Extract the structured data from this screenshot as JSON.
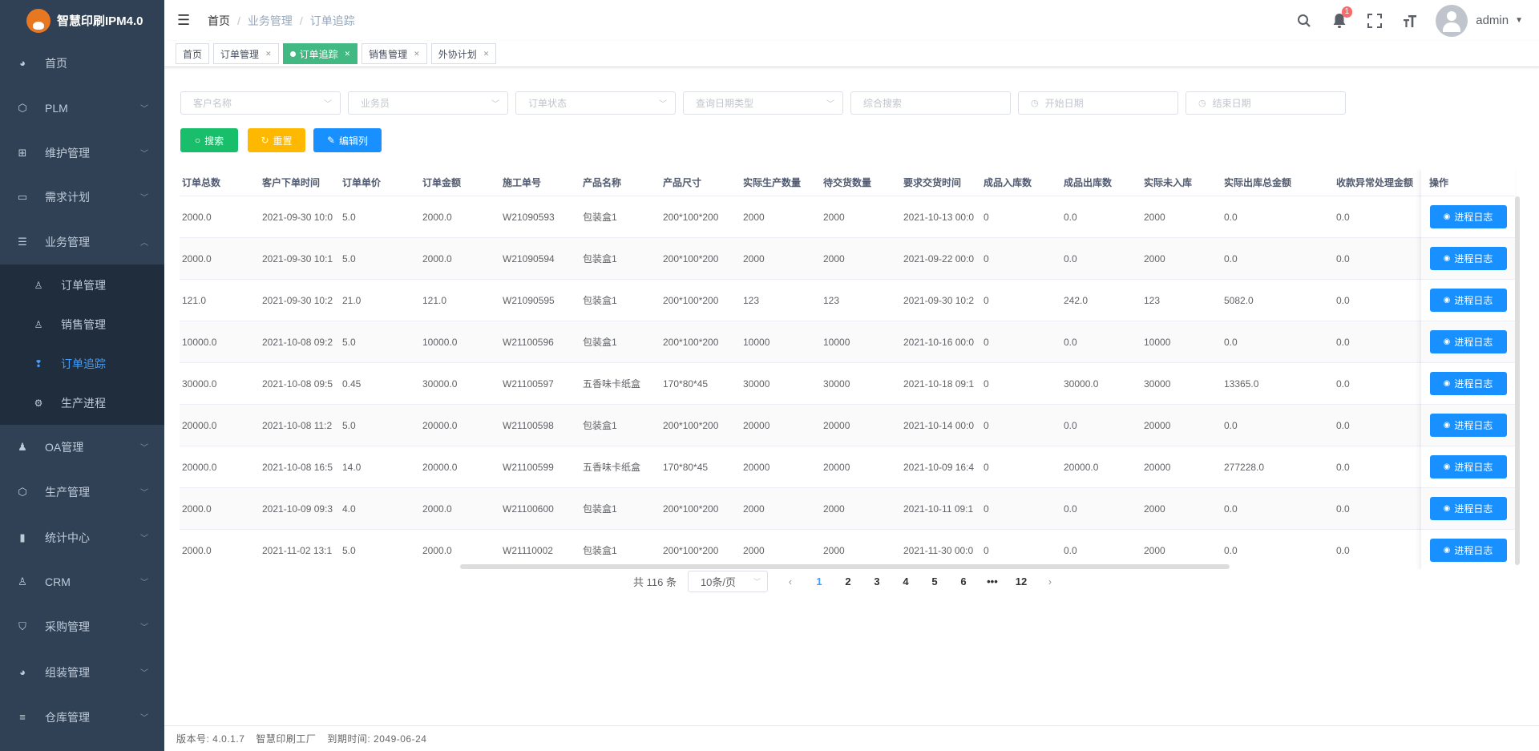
{
  "app": {
    "title": "智慧印刷IPM4.0"
  },
  "colors": {
    "sidebar": "#304156",
    "submenu": "#1f2d3d",
    "active_menu": "#409eff",
    "tag_active": "#42b983",
    "search_btn": "#19be6b",
    "reset_btn": "#ffb800",
    "edit_btn": "#1890ff",
    "op_btn": "#1890ff"
  },
  "breadcrumb": [
    "首页",
    "业务管理",
    "订单追踪"
  ],
  "header": {
    "notification_count": "1",
    "username": "admin"
  },
  "tags": [
    {
      "label": "首页"
    },
    {
      "label": "订单管理"
    },
    {
      "label": "订单追踪",
      "active": true
    },
    {
      "label": "销售管理"
    },
    {
      "label": "外协计划"
    }
  ],
  "sidebar": {
    "items": [
      {
        "label": "首页",
        "icon": "dashboard-icon"
      },
      {
        "label": "PLM",
        "icon": "cube-icon"
      },
      {
        "label": "维护管理",
        "icon": "grid-icon"
      },
      {
        "label": "需求计划",
        "icon": "monitor-icon"
      },
      {
        "label": "业务管理",
        "icon": "list-icon",
        "expanded": true
      },
      {
        "label": "OA管理",
        "icon": "people-icon"
      },
      {
        "label": "生产管理",
        "icon": "cube-icon"
      },
      {
        "label": "统计中心",
        "icon": "bar-chart-icon"
      },
      {
        "label": "CRM",
        "icon": "user-icon"
      },
      {
        "label": "采购管理",
        "icon": "shield-icon"
      },
      {
        "label": "组装管理",
        "icon": "dashboard-icon"
      },
      {
        "label": "仓库管理",
        "icon": "database-icon"
      }
    ],
    "sub_items": [
      {
        "label": "订单管理",
        "icon": "person-icon"
      },
      {
        "label": "销售管理",
        "icon": "person-icon"
      },
      {
        "label": "订单追踪",
        "icon": "footprint-icon",
        "active": true
      },
      {
        "label": "生产进程",
        "icon": "gear-icon"
      }
    ]
  },
  "filters": {
    "customer": "客户名称",
    "salesman": "业务员",
    "status": "订单状态",
    "date_type": "查询日期类型",
    "keyword": "综合搜索",
    "start": "开始日期",
    "end": "结束日期"
  },
  "buttons": {
    "search": "搜索",
    "reset": "重置",
    "edit_columns": "编辑列"
  },
  "table": {
    "columns": [
      "订单总数",
      "客户下单时间",
      "订单单价",
      "订单金额",
      "施工单号",
      "产品名称",
      "产品尺寸",
      "实际生产数量",
      "待交货数量",
      "要求交货时间",
      "成品入库数",
      "成品出库数",
      "实际未入库",
      "实际出库总金额",
      "收款异常处理金额"
    ],
    "op_header": "操作",
    "op_label": "进程日志",
    "rows": [
      [
        "2000.0",
        "2021-09-30 10:0",
        "5.0",
        "2000.0",
        "W21090593",
        "包装盒1",
        "200*100*200",
        "2000",
        "2000",
        "2021-10-13 00:0",
        "0",
        "0.0",
        "2000",
        "0.0",
        "0.0"
      ],
      [
        "2000.0",
        "2021-09-30 10:1",
        "5.0",
        "2000.0",
        "W21090594",
        "包装盒1",
        "200*100*200",
        "2000",
        "2000",
        "2021-09-22 00:0",
        "0",
        "0.0",
        "2000",
        "0.0",
        "0.0"
      ],
      [
        "121.0",
        "2021-09-30 10:2",
        "21.0",
        "121.0",
        "W21090595",
        "包装盒1",
        "200*100*200",
        "123",
        "123",
        "2021-09-30 10:2",
        "0",
        "242.0",
        "123",
        "5082.0",
        "0.0"
      ],
      [
        "10000.0",
        "2021-10-08 09:2",
        "5.0",
        "10000.0",
        "W21100596",
        "包装盒1",
        "200*100*200",
        "10000",
        "10000",
        "2021-10-16 00:0",
        "0",
        "0.0",
        "10000",
        "0.0",
        "0.0"
      ],
      [
        "30000.0",
        "2021-10-08 09:5",
        "0.45",
        "30000.0",
        "W21100597",
        "五香味卡纸盒",
        "170*80*45",
        "30000",
        "30000",
        "2021-10-18 09:1",
        "0",
        "30000.0",
        "30000",
        "13365.0",
        "0.0"
      ],
      [
        "20000.0",
        "2021-10-08 11:2",
        "5.0",
        "20000.0",
        "W21100598",
        "包装盒1",
        "200*100*200",
        "20000",
        "20000",
        "2021-10-14 00:0",
        "0",
        "0.0",
        "20000",
        "0.0",
        "0.0"
      ],
      [
        "20000.0",
        "2021-10-08 16:5",
        "14.0",
        "20000.0",
        "W21100599",
        "五香味卡纸盒",
        "170*80*45",
        "20000",
        "20000",
        "2021-10-09 16:4",
        "0",
        "20000.0",
        "20000",
        "277228.0",
        "0.0"
      ],
      [
        "2000.0",
        "2021-10-09 09:3",
        "4.0",
        "2000.0",
        "W21100600",
        "包装盒1",
        "200*100*200",
        "2000",
        "2000",
        "2021-10-11 09:1",
        "0",
        "0.0",
        "2000",
        "0.0",
        "0.0"
      ],
      [
        "2000.0",
        "2021-11-02 13:1",
        "5.0",
        "2000.0",
        "W21110002",
        "包装盒1",
        "200*100*200",
        "2000",
        "2000",
        "2021-11-30 00:0",
        "0",
        "0.0",
        "2000",
        "0.0",
        "0.0"
      ]
    ]
  },
  "pagination": {
    "total": "共 116 条",
    "page_size": "10条/页",
    "pages": [
      "1",
      "2",
      "3",
      "4",
      "5",
      "6",
      "•••",
      "12"
    ],
    "current": "1"
  },
  "footer": {
    "version": "版本号: 4.0.1.7",
    "company": "智慧印刷工厂",
    "expiry": "到期时间: 2049-06-24"
  }
}
